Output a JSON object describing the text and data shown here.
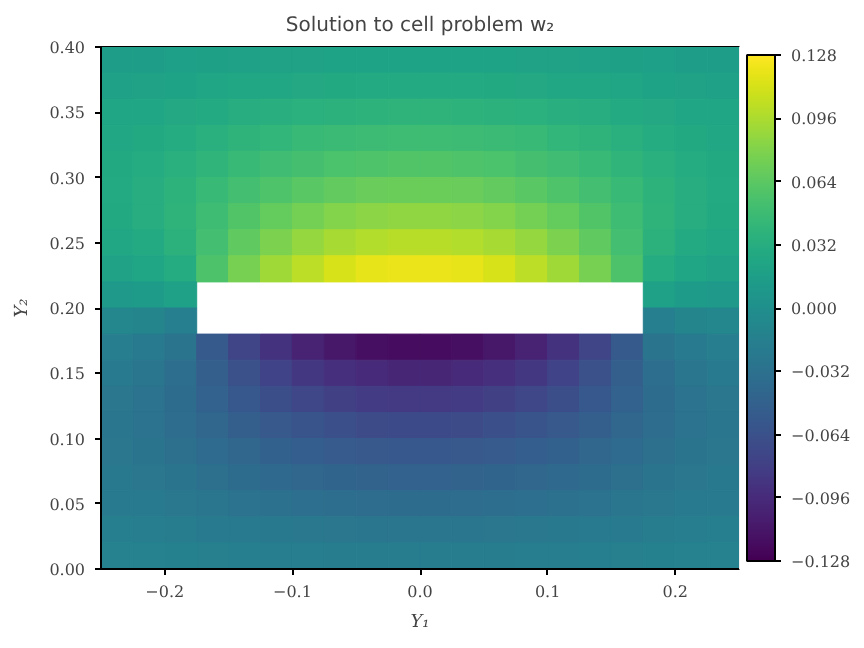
{
  "chart_data": {
    "type": "heatmap",
    "title": "Solution to cell problem w₂",
    "xlabel": "Y₁",
    "ylabel": "Y₂",
    "x": [
      -0.2375,
      -0.2125,
      -0.1875,
      -0.1625,
      -0.1375,
      -0.1125,
      -0.0875,
      -0.0625,
      -0.0375,
      -0.0125,
      0.0125,
      0.0375,
      0.0625,
      0.0875,
      0.1125,
      0.1375,
      0.1625,
      0.1875,
      0.2125,
      0.2375
    ],
    "y": [
      0.39,
      0.37,
      0.35,
      0.33,
      0.31,
      0.29,
      0.27,
      0.25,
      0.23,
      0.21,
      0.19,
      0.17,
      0.15,
      0.13,
      0.11,
      0.09,
      0.07,
      0.05,
      0.03,
      0.01
    ],
    "cells": [
      [
        0.015,
        0.015,
        0.016,
        0.017,
        0.018,
        0.019,
        0.019,
        0.02,
        0.02,
        0.02,
        0.02,
        0.02,
        0.02,
        0.019,
        0.019,
        0.018,
        0.017,
        0.016,
        0.015,
        0.015
      ],
      [
        0.018,
        0.019,
        0.02,
        0.022,
        0.024,
        0.025,
        0.026,
        0.027,
        0.028,
        0.028,
        0.028,
        0.028,
        0.027,
        0.026,
        0.025,
        0.024,
        0.022,
        0.02,
        0.019,
        0.018
      ],
      [
        0.022,
        0.023,
        0.026,
        0.028,
        0.031,
        0.033,
        0.035,
        0.036,
        0.037,
        0.038,
        0.038,
        0.037,
        0.036,
        0.035,
        0.033,
        0.031,
        0.028,
        0.026,
        0.023,
        0.022
      ],
      [
        0.025,
        0.027,
        0.03,
        0.034,
        0.038,
        0.041,
        0.044,
        0.046,
        0.047,
        0.048,
        0.048,
        0.047,
        0.046,
        0.044,
        0.041,
        0.038,
        0.034,
        0.03,
        0.027,
        0.025
      ],
      [
        0.027,
        0.03,
        0.034,
        0.039,
        0.044,
        0.049,
        0.052,
        0.055,
        0.057,
        0.058,
        0.058,
        0.057,
        0.055,
        0.052,
        0.049,
        0.044,
        0.039,
        0.034,
        0.03,
        0.027
      ],
      [
        0.028,
        0.031,
        0.037,
        0.044,
        0.051,
        0.057,
        0.062,
        0.066,
        0.069,
        0.07,
        0.07,
        0.069,
        0.066,
        0.062,
        0.057,
        0.051,
        0.044,
        0.037,
        0.031,
        0.028
      ],
      [
        0.027,
        0.031,
        0.038,
        0.048,
        0.058,
        0.067,
        0.074,
        0.08,
        0.083,
        0.085,
        0.085,
        0.083,
        0.08,
        0.074,
        0.067,
        0.058,
        0.048,
        0.038,
        0.031,
        0.027
      ],
      [
        0.024,
        0.028,
        0.036,
        0.051,
        0.065,
        0.077,
        0.087,
        0.094,
        0.098,
        0.1,
        0.1,
        0.098,
        0.094,
        0.087,
        0.077,
        0.065,
        0.051,
        0.036,
        0.028,
        0.024
      ],
      [
        0.019,
        0.022,
        0.03,
        0.056,
        0.075,
        0.091,
        0.103,
        0.112,
        0.118,
        0.12,
        0.12,
        0.118,
        0.112,
        0.103,
        0.091,
        0.075,
        0.056,
        0.03,
        0.022,
        0.019
      ],
      [
        0.01,
        0.012,
        0.018,
        null,
        null,
        null,
        null,
        null,
        null,
        null,
        null,
        null,
        null,
        null,
        null,
        null,
        null,
        0.018,
        0.012,
        0.01
      ],
      [
        -0.01,
        -0.012,
        -0.018,
        null,
        null,
        null,
        null,
        null,
        null,
        null,
        null,
        null,
        null,
        null,
        null,
        null,
        null,
        -0.018,
        -0.012,
        -0.01
      ],
      [
        -0.019,
        -0.022,
        -0.03,
        -0.056,
        -0.075,
        -0.091,
        -0.103,
        -0.112,
        -0.118,
        -0.12,
        -0.12,
        -0.118,
        -0.112,
        -0.103,
        -0.091,
        -0.075,
        -0.056,
        -0.03,
        -0.022,
        -0.019
      ],
      [
        -0.024,
        -0.028,
        -0.036,
        -0.051,
        -0.065,
        -0.077,
        -0.087,
        -0.094,
        -0.098,
        -0.1,
        -0.1,
        -0.098,
        -0.094,
        -0.087,
        -0.077,
        -0.065,
        -0.051,
        -0.036,
        -0.028,
        -0.024
      ],
      [
        -0.027,
        -0.031,
        -0.038,
        -0.048,
        -0.058,
        -0.067,
        -0.074,
        -0.08,
        -0.083,
        -0.085,
        -0.085,
        -0.083,
        -0.08,
        -0.074,
        -0.067,
        -0.058,
        -0.048,
        -0.038,
        -0.031,
        -0.027
      ],
      [
        -0.028,
        -0.031,
        -0.037,
        -0.044,
        -0.051,
        -0.057,
        -0.062,
        -0.066,
        -0.069,
        -0.07,
        -0.07,
        -0.069,
        -0.066,
        -0.062,
        -0.057,
        -0.051,
        -0.044,
        -0.037,
        -0.031,
        -0.028
      ],
      [
        -0.027,
        -0.03,
        -0.034,
        -0.039,
        -0.044,
        -0.049,
        -0.052,
        -0.055,
        -0.057,
        -0.058,
        -0.058,
        -0.057,
        -0.055,
        -0.052,
        -0.049,
        -0.044,
        -0.039,
        -0.034,
        -0.03,
        -0.027
      ],
      [
        -0.025,
        -0.027,
        -0.03,
        -0.034,
        -0.038,
        -0.041,
        -0.044,
        -0.046,
        -0.047,
        -0.048,
        -0.048,
        -0.047,
        -0.046,
        -0.044,
        -0.041,
        -0.038,
        -0.034,
        -0.03,
        -0.027,
        -0.025
      ],
      [
        -0.022,
        -0.023,
        -0.026,
        -0.028,
        -0.031,
        -0.033,
        -0.035,
        -0.036,
        -0.037,
        -0.038,
        -0.038,
        -0.037,
        -0.036,
        -0.035,
        -0.033,
        -0.031,
        -0.028,
        -0.026,
        -0.023,
        -0.022
      ],
      [
        -0.018,
        -0.019,
        -0.02,
        -0.022,
        -0.024,
        -0.025,
        -0.026,
        -0.027,
        -0.028,
        -0.028,
        -0.028,
        -0.028,
        -0.027,
        -0.026,
        -0.025,
        -0.024,
        -0.022,
        -0.02,
        -0.019,
        -0.018
      ],
      [
        -0.015,
        -0.015,
        -0.016,
        -0.017,
        -0.018,
        -0.019,
        -0.019,
        -0.02,
        -0.02,
        -0.02,
        -0.02,
        -0.02,
        -0.02,
        -0.019,
        -0.019,
        -0.018,
        -0.017,
        -0.016,
        -0.015,
        -0.015
      ]
    ],
    "xlim": [
      -0.25,
      0.25
    ],
    "xticks": [
      {
        "value": -0.2,
        "label": "−0.2"
      },
      {
        "value": -0.1,
        "label": "−0.1"
      },
      {
        "value": 0.0,
        "label": "0.0"
      },
      {
        "value": 0.1,
        "label": "0.1"
      },
      {
        "value": 0.2,
        "label": "0.2"
      }
    ],
    "ylim": [
      0.0,
      0.4
    ],
    "yticks": [
      {
        "value": 0.0,
        "label": "0.00"
      },
      {
        "value": 0.05,
        "label": "0.05"
      },
      {
        "value": 0.1,
        "label": "0.10"
      },
      {
        "value": 0.15,
        "label": "0.15"
      },
      {
        "value": 0.2,
        "label": "0.20"
      },
      {
        "value": 0.25,
        "label": "0.25"
      },
      {
        "value": 0.3,
        "label": "0.30"
      },
      {
        "value": 0.35,
        "label": "0.35"
      },
      {
        "value": 0.4,
        "label": "0.40"
      }
    ],
    "clim": [
      -0.128,
      0.128
    ],
    "cticks": [
      {
        "value": -0.128,
        "label": "−0.128"
      },
      {
        "value": -0.096,
        "label": "−0.096"
      },
      {
        "value": -0.064,
        "label": "−0.064"
      },
      {
        "value": -0.032,
        "label": "−0.032"
      },
      {
        "value": 0.0,
        "label": "0.000"
      },
      {
        "value": 0.032,
        "label": "0.032"
      },
      {
        "value": 0.064,
        "label": "0.064"
      },
      {
        "value": 0.096,
        "label": "0.096"
      },
      {
        "value": 0.128,
        "label": "0.128"
      }
    ],
    "grid": false
  }
}
